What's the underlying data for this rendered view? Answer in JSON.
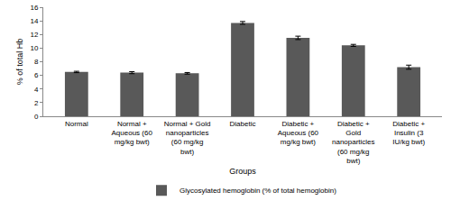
{
  "chart_data": {
    "type": "bar",
    "categories": [
      "Normal",
      "Normal + Aqueous (60 mg/kg bwt)",
      "Normal + Gold nanoparticles (60 mg/kg bwt)",
      "Diabetic",
      "Diabetic + Aqueous (60 mg/kg bwt)",
      "Diabetic + Gold nanoparticles (60 mg/kg bwt)",
      "Diabetic + Insulin (3 IU/kg bwt)"
    ],
    "series": [
      {
        "name": "Glycosylated hemoglobin (% of total hemoglobin)",
        "color": "#595959",
        "values": [
          6.5,
          6.4,
          6.3,
          13.7,
          11.5,
          10.4,
          7.2
        ],
        "errors": [
          0.1,
          0.15,
          0.12,
          0.2,
          0.25,
          0.15,
          0.3
        ]
      }
    ],
    "x_label": "Groups",
    "y_label": "% of total Hb",
    "ylim": [
      0,
      16
    ],
    "yticks": [
      0,
      2,
      4,
      6,
      8,
      10,
      12,
      14,
      16
    ],
    "grid": false,
    "legend": "bottom"
  }
}
